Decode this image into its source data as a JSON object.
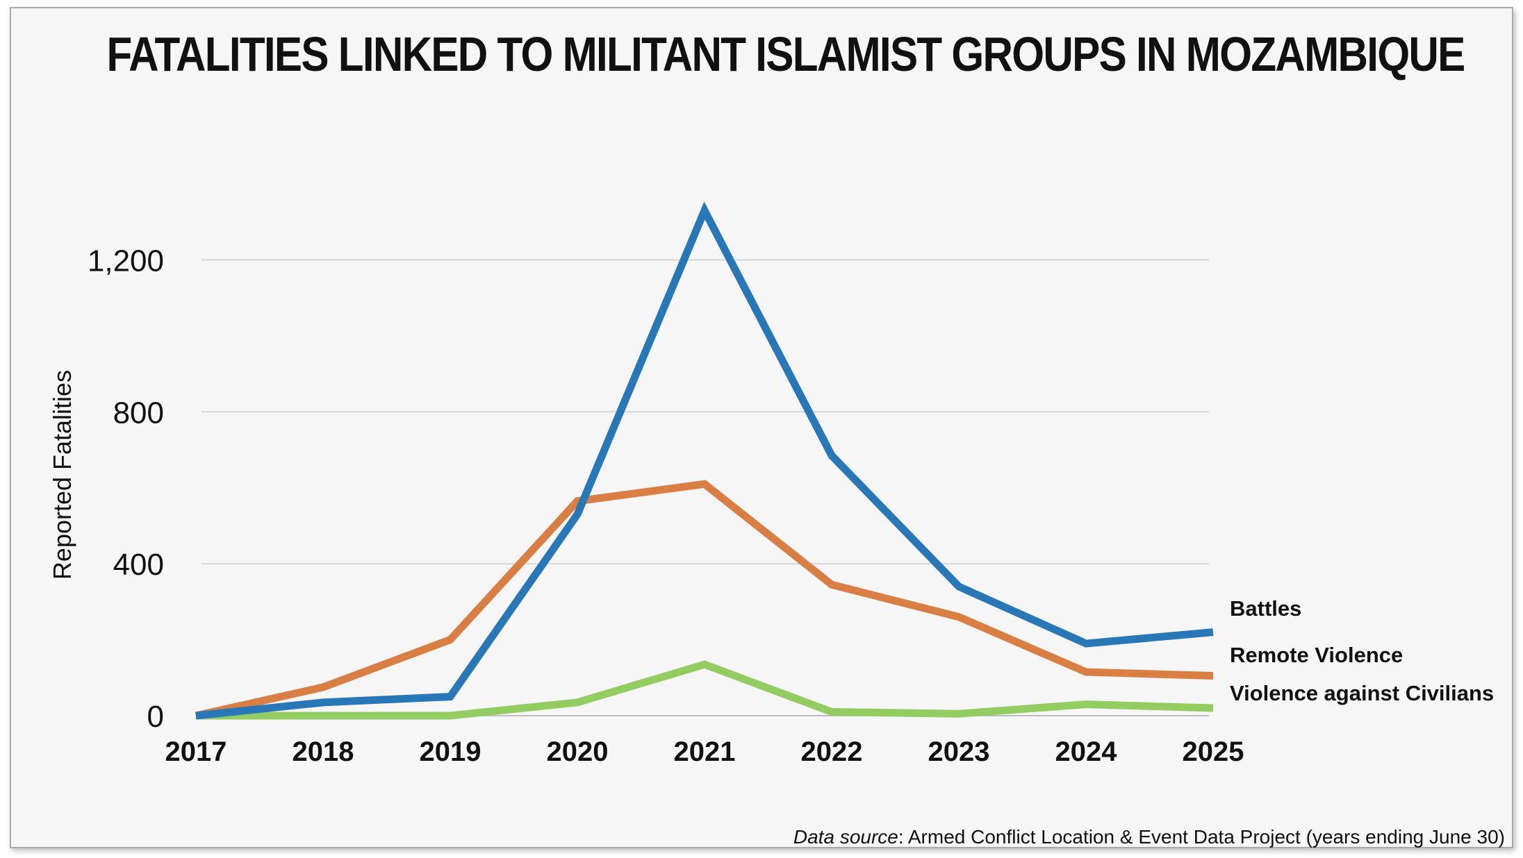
{
  "title": "FATALITIES LINKED TO MILITANT ISLAMIST GROUPS IN MOZAMBIQUE",
  "source": {
    "prefix": "Data source",
    "text": ": Armed Conflict Location & Event Data Project (years ending June 30)"
  },
  "chart_data": {
    "type": "line",
    "title": "FATALITIES LINKED TO MILITANT ISLAMIST GROUPS IN MOZAMBIQUE",
    "xlabel": "",
    "ylabel": "Reported Fatalities",
    "categories": [
      "2017",
      "2018",
      "2019",
      "2020",
      "2021",
      "2022",
      "2023",
      "2024",
      "2025"
    ],
    "ylim": [
      0,
      1400
    ],
    "yticks": [
      0,
      400,
      800,
      1200
    ],
    "ytick_labels": [
      "0",
      "400",
      "800",
      "1,200"
    ],
    "grid": true,
    "legend": "inline-right",
    "series": [
      {
        "name": "Battles",
        "color": "#2877b7",
        "values": [
          0,
          35,
          50,
          530,
          1330,
          685,
          340,
          190,
          220
        ]
      },
      {
        "name": "Remote Violence",
        "color": "#d97f44",
        "values": [
          0,
          75,
          200,
          565,
          610,
          345,
          260,
          115,
          105
        ]
      },
      {
        "name": "Violence against Civilians",
        "color": "#93cc60",
        "values": [
          0,
          0,
          0,
          35,
          135,
          10,
          5,
          30,
          20
        ]
      }
    ]
  }
}
